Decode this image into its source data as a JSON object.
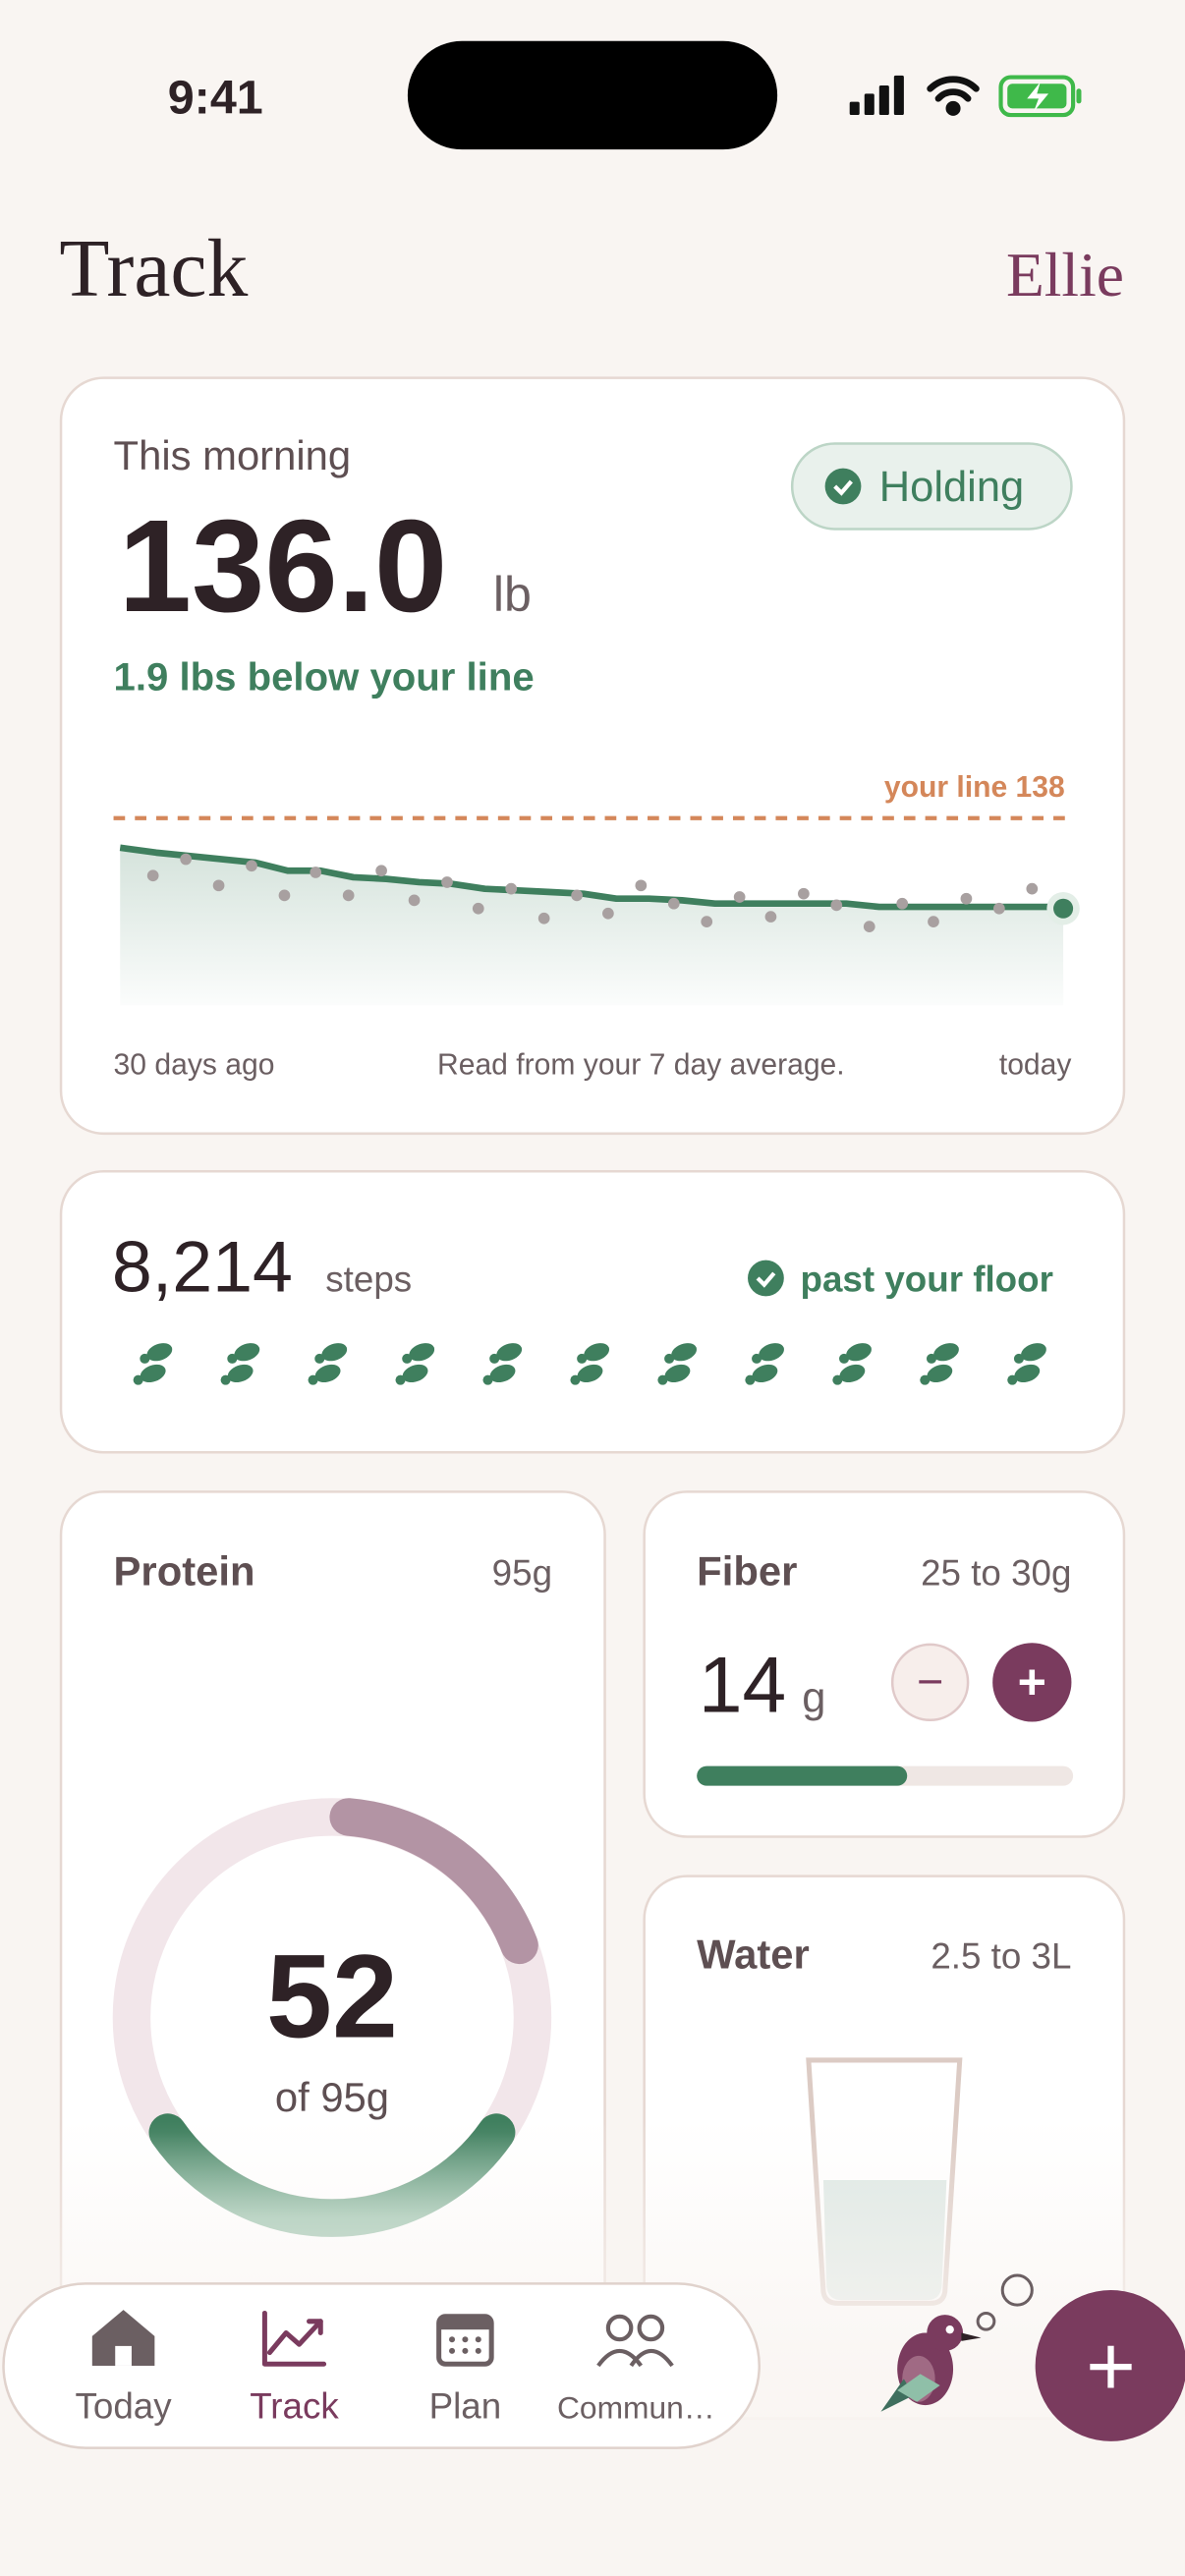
{
  "status_bar": {
    "time": "9:41"
  },
  "header": {
    "title": "Track",
    "user": "Ellie"
  },
  "weight_card": {
    "label": "This morning",
    "status": "Holding",
    "value": "136.0",
    "unit": "lb",
    "delta": "1.9 lbs below your line",
    "line_label": "your line 138",
    "start_label": "30 days ago",
    "note": "Read from your 7 day average.",
    "end_label": "today"
  },
  "steps_card": {
    "value": "8,214",
    "unit": "steps",
    "status": "past your floor"
  },
  "protein_card": {
    "title": "Protein",
    "target": "95g",
    "value": "52",
    "caption": "of 95g"
  },
  "fiber_card": {
    "title": "Fiber",
    "target": "25 to 30g",
    "value": "14",
    "unit": "g",
    "decrement": "−",
    "increment": "+"
  },
  "water_card": {
    "title": "Water",
    "target": "2.5 to 3L"
  },
  "tab_bar": {
    "tabs": [
      "Today",
      "Track",
      "Plan",
      "Commun…"
    ]
  },
  "fab": {
    "label": "+"
  }
}
